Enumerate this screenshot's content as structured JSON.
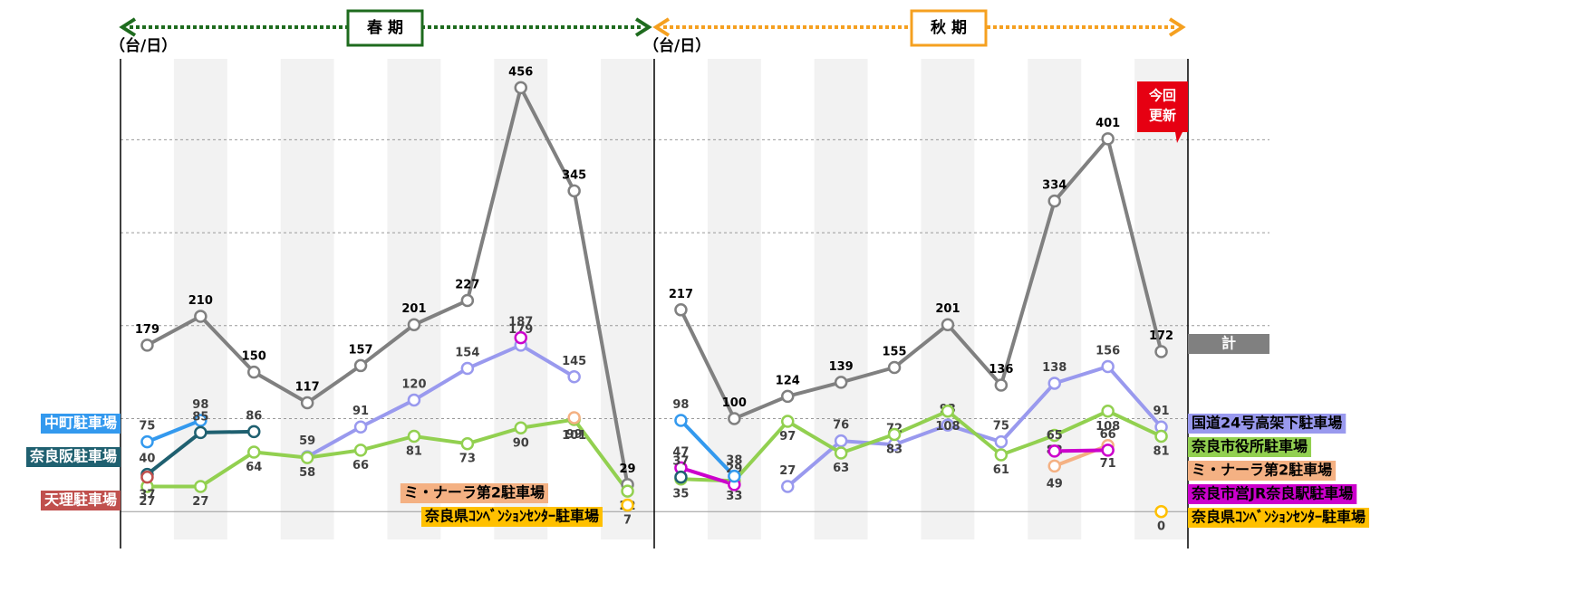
{
  "chart_data": {
    "type": "line",
    "panels": [
      {
        "title": "春 期",
        "unit": "（台/日）",
        "color": "#1e6b1e"
      },
      {
        "title": "秋 期",
        "unit": "（台/日）",
        "color": "#f5a020"
      }
    ],
    "annotation": [
      "今回",
      "更新"
    ],
    "ylim": [
      -30,
      487
    ],
    "yticks": [
      0,
      100,
      200,
      300,
      400
    ],
    "grid": true,
    "series": [
      {
        "name": "計",
        "color": "#808080",
        "values": [
          179,
          210,
          150,
          117,
          157,
          201,
          227,
          456,
          345,
          29,
          217,
          100,
          124,
          139,
          155,
          201,
          136,
          334,
          401,
          172
        ]
      },
      {
        "name": "国道24号高架下駐車場",
        "color": "#9999ee",
        "values": [
          null,
          null,
          null,
          59,
          91,
          120,
          154,
          179,
          145,
          null,
          null,
          null,
          27,
          76,
          72,
          93,
          75,
          138,
          156,
          91
        ]
      },
      {
        "name": "奈良市役所駐車場",
        "color": "#92d050",
        "values": [
          27,
          27,
          64,
          58,
          66,
          81,
          73,
          90,
          99,
          22,
          35,
          33,
          97,
          63,
          83,
          108,
          61,
          82,
          108,
          81
        ]
      },
      {
        "name": "ミ・ナーラ第2駐車場",
        "color": "#f4b183",
        "values": [
          null,
          null,
          null,
          null,
          null,
          null,
          null,
          null,
          101,
          null,
          null,
          null,
          null,
          null,
          null,
          null,
          null,
          49,
          71,
          null
        ]
      },
      {
        "name": "奈良市営JR奈良駅駐車場",
        "color": "#cc00cc",
        "values": [
          null,
          null,
          null,
          null,
          null,
          null,
          null,
          187,
          null,
          null,
          47,
          29,
          null,
          null,
          null,
          null,
          null,
          65,
          66,
          null
        ]
      },
      {
        "name": "奈良県ｺﾝﾍﾞﾝｼｮﾝｾﾝﾀｰ駐車場",
        "color": "#ffc000",
        "values": [
          null,
          null,
          null,
          null,
          null,
          null,
          null,
          null,
          null,
          7,
          null,
          null,
          null,
          null,
          null,
          null,
          null,
          null,
          null,
          0
        ]
      },
      {
        "name": "中町駐車場",
        "color": "#3399ee",
        "values": [
          75,
          98,
          null,
          null,
          null,
          null,
          null,
          null,
          null,
          null,
          98,
          38,
          null,
          null,
          null,
          null,
          null,
          null,
          null,
          null
        ]
      },
      {
        "name": "奈良阪駐車場",
        "color": "#1f6070",
        "values": [
          40,
          85,
          86,
          null,
          null,
          null,
          null,
          null,
          null,
          null,
          37,
          null,
          null,
          null,
          null,
          null,
          null,
          null,
          null,
          null
        ]
      },
      {
        "name": "天理駐車場",
        "color": "#c0504d",
        "values": [
          37,
          null,
          null,
          null,
          null,
          null,
          null,
          null,
          null,
          null,
          null,
          null,
          null,
          null,
          null,
          null,
          null,
          null,
          null,
          null
        ]
      }
    ]
  }
}
